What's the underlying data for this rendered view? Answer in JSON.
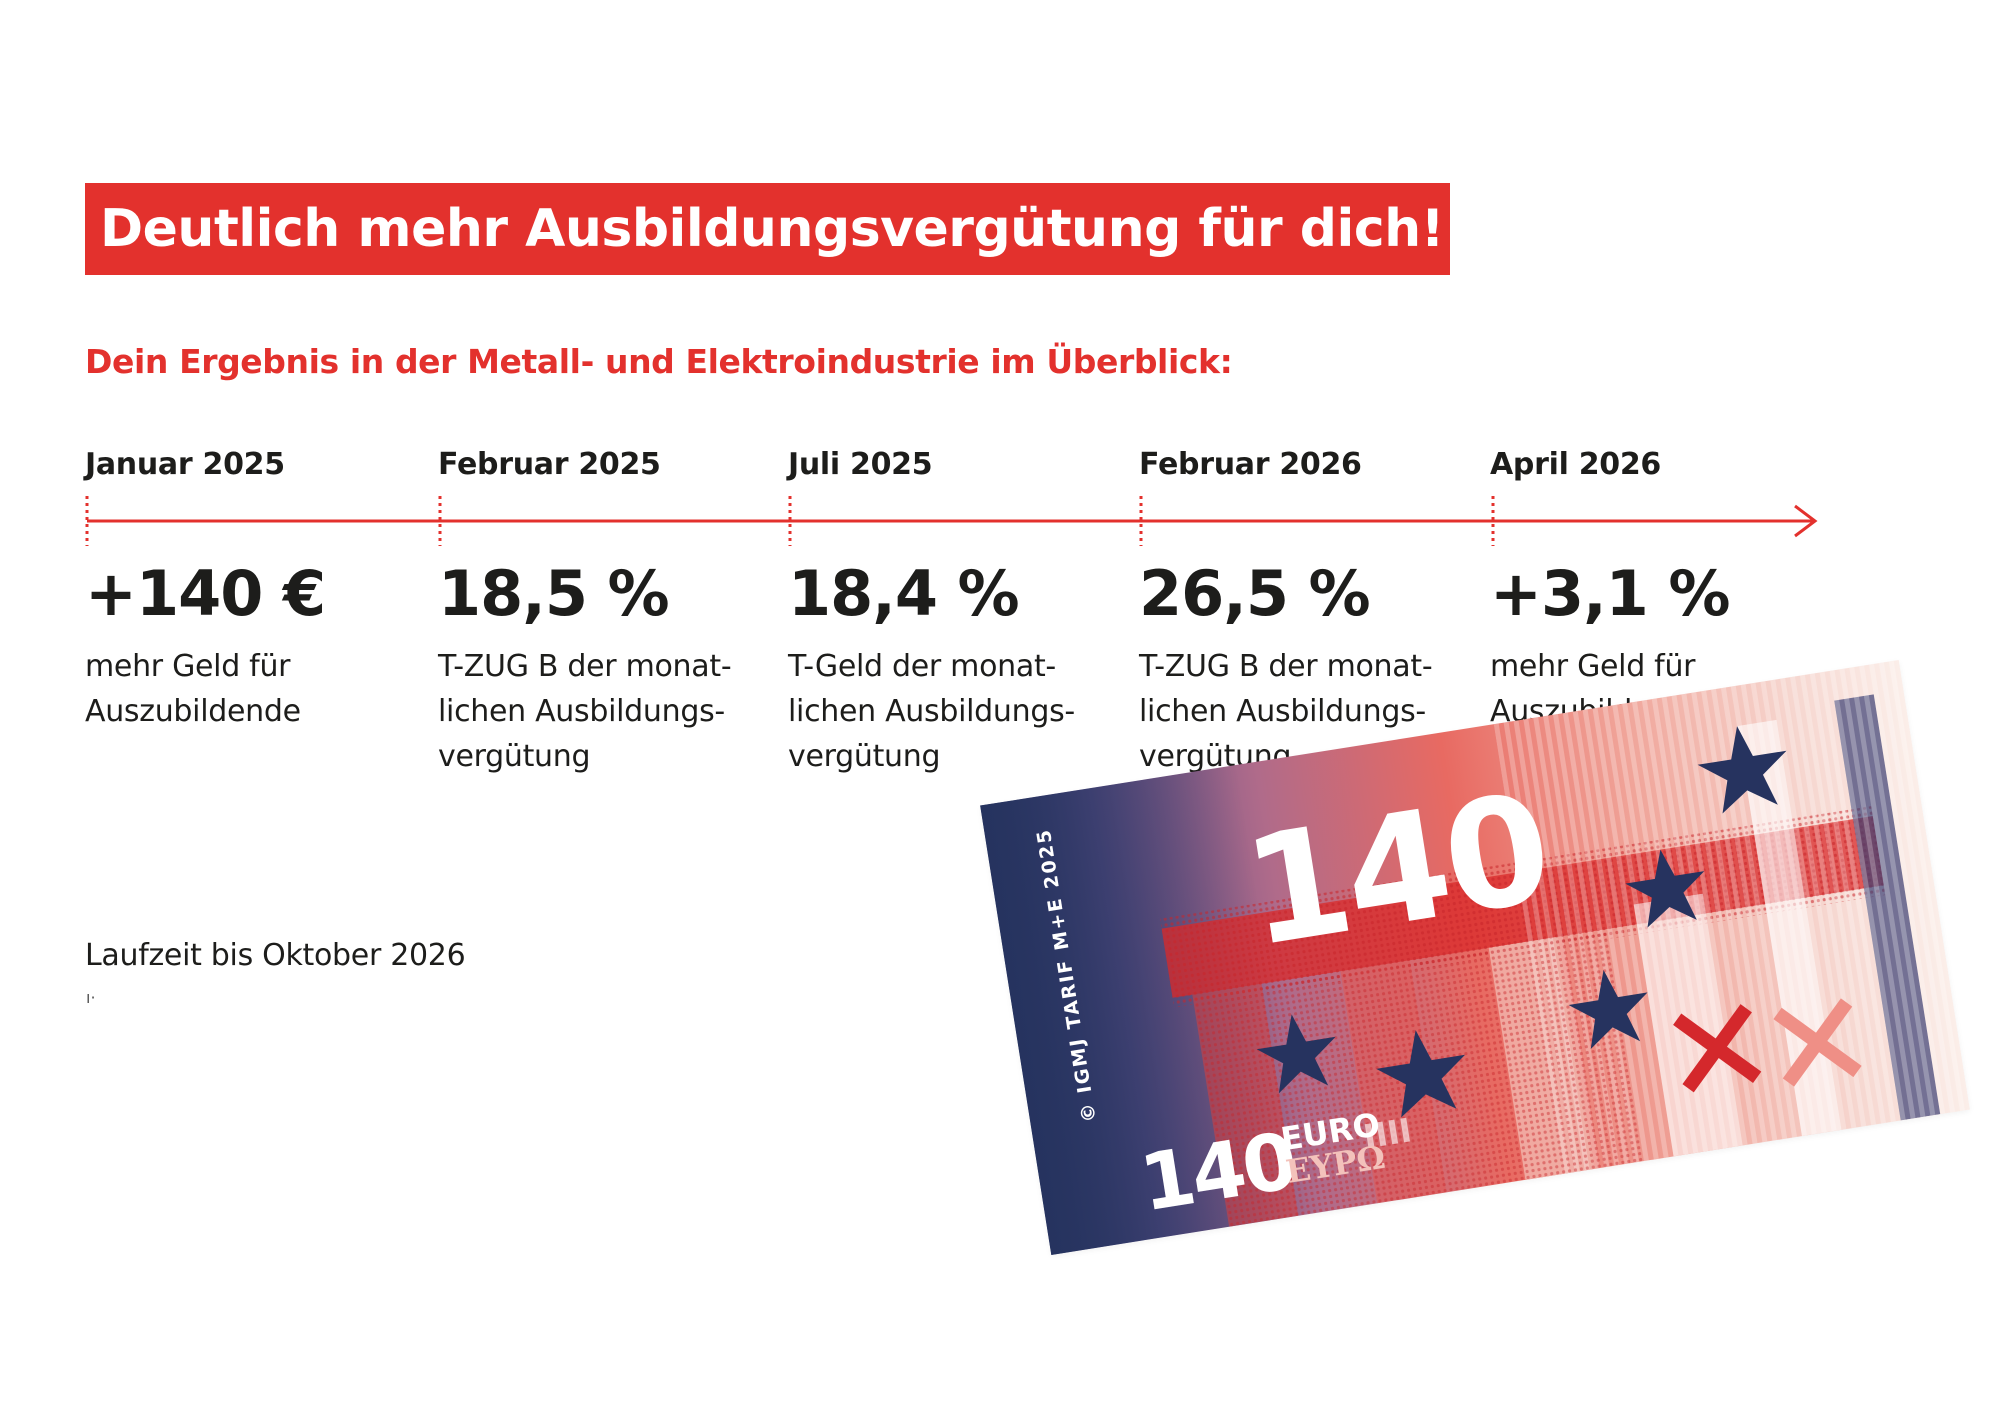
{
  "header": {
    "title": "Deutlich mehr Ausbildungsvergütung für dich!",
    "subtitle": "Dein Ergebnis in der Metall- und Elektroindustrie im Überblick:"
  },
  "timeline": [
    {
      "date": "Januar 2025",
      "value": "+140 €",
      "description": "mehr Geld für\nAuszubildende"
    },
    {
      "date": "Februar 2025",
      "value": "18,5 %",
      "description": "T-ZUG B der monat-\nlichen Ausbildungs-\nvergütung"
    },
    {
      "date": "Juli 2025",
      "value": "18,4 %",
      "description": "T-Geld der monat-\nlichen Ausbildungs-\nvergütung"
    },
    {
      "date": "Februar 2026",
      "value": "26,5 %",
      "description": "T-ZUG B der monat-\nlichen Ausbildungs-\nvergütung"
    },
    {
      "date": "April 2026",
      "value": "+3,1 %",
      "description": "mehr Geld für\nAuszubildende"
    }
  ],
  "footer": {
    "duration": "Laufzeit bis Oktober 2026"
  },
  "banknote": {
    "big_value": "140",
    "small_value": "140",
    "currency": "EURO",
    "currency_greek": "ΕΥΡΩ",
    "copyright": "© IGMJ TARIF M+E 2025"
  },
  "colors": {
    "accent_red": "#e3312d",
    "text_dark": "#1d1d1b",
    "navy": "#2f3c6a"
  }
}
